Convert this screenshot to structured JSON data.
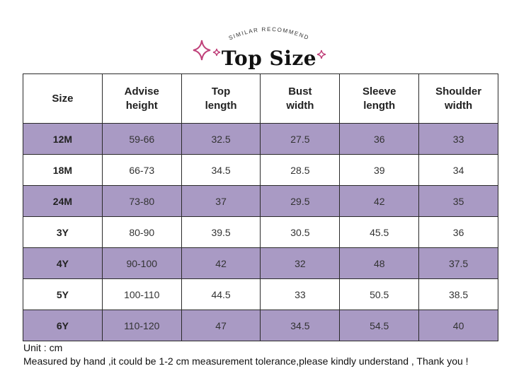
{
  "header": {
    "subtitle": "SIMILAR RECOMMEND",
    "title": "Top Size",
    "accent_color": "#c0417a"
  },
  "table": {
    "columns": [
      [
        "Size"
      ],
      [
        "Advise",
        "height"
      ],
      [
        "Top",
        "length"
      ],
      [
        "Bust",
        "width"
      ],
      [
        "Sleeve",
        "length"
      ],
      [
        "Shoulder",
        "width"
      ]
    ],
    "rows": [
      [
        "12M",
        "59-66",
        "32.5",
        "27.5",
        "36",
        "33"
      ],
      [
        "18M",
        "66-73",
        "34.5",
        "28.5",
        "39",
        "34"
      ],
      [
        "24M",
        "73-80",
        "37",
        "29.5",
        "42",
        "35"
      ],
      [
        "3Y",
        "80-90",
        "39.5",
        "30.5",
        "45.5",
        "36"
      ],
      [
        "4Y",
        "90-100",
        "42",
        "32",
        "48",
        "37.5"
      ],
      [
        "5Y",
        "100-110",
        "44.5",
        "33",
        "50.5",
        "38.5"
      ],
      [
        "6Y",
        "110-120",
        "47",
        "34.5",
        "54.5",
        "40"
      ]
    ],
    "row_color_purple": "#a99ac4"
  },
  "footer": {
    "unit": "Unit : cm",
    "note": "Measured by hand ,it could be 1-2 cm measurement tolerance,please kindly understand , Thank you !"
  }
}
